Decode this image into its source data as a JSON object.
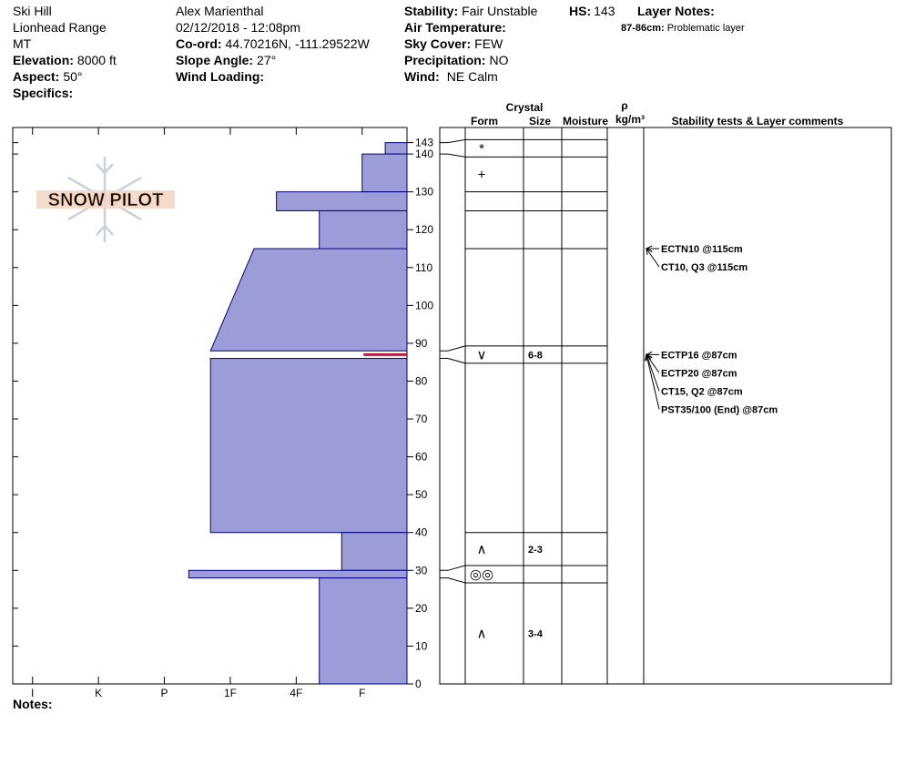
{
  "header": {
    "site": "Ski Hill",
    "range": "Lionhead Range",
    "state": "MT",
    "elevation": {
      "label": "Elevation:",
      "value": "8000 ft"
    },
    "aspect": {
      "label": "Aspect:",
      "value": "50°"
    },
    "specifics": {
      "label": "Specifics:"
    },
    "observer": "Alex Marienthal",
    "datetime": "02/12/2018 - 12:08pm",
    "coord": {
      "label": "Co-ord:",
      "value": "44.70216N, -111.29522W"
    },
    "slope": {
      "label": "Slope Angle:",
      "value": "27°"
    },
    "wind_loading": {
      "label": "Wind Loading:"
    },
    "stability": {
      "label": "Stability:",
      "value": "Fair Unstable"
    },
    "air_temp": {
      "label": "Air Temperature:"
    },
    "sky": {
      "label": "Sky Cover:",
      "value": "FEW"
    },
    "precip": {
      "label": "Precipitation:",
      "value": "NO"
    },
    "wind": {
      "label": "Wind:",
      "value": "NE Calm"
    },
    "hs": {
      "label": "HS:",
      "value": "143"
    },
    "layer_notes": {
      "label": "Layer Notes:",
      "notes": [
        {
          "range": "87-86cm:",
          "text": "Problematic layer"
        }
      ]
    }
  },
  "notes_label": "Notes:",
  "logo": "SNOW PILOT",
  "chart_data": {
    "type": "snow-profile",
    "ylim": [
      0,
      147
    ],
    "yticks": [
      0,
      10,
      20,
      30,
      40,
      50,
      60,
      70,
      80,
      90,
      100,
      110,
      120,
      130,
      140,
      143
    ],
    "xlim": [
      0.32,
      6.3
    ],
    "xticks": [
      {
        "value": 6,
        "label": "I"
      },
      {
        "value": 5,
        "label": "K"
      },
      {
        "value": 4,
        "label": "P"
      },
      {
        "value": 3,
        "label": "1F"
      },
      {
        "value": 2,
        "label": "4F"
      },
      {
        "value": 1,
        "label": "F"
      }
    ],
    "color": "#9c9cd8",
    "edge_color": "#000080",
    "headers": {
      "crystal": "Crystal",
      "form": "Form",
      "size": "Size",
      "moisture": "Moisture",
      "rho": "ρ",
      "density_unit": "kg/m³",
      "comments": "Stability tests & Layer comments"
    },
    "layers": [
      {
        "top": 143,
        "bottom": 140,
        "hardness": 0.65,
        "form": "*"
      },
      {
        "top": 140,
        "bottom": 130,
        "hardness": 1,
        "form": "+"
      },
      {
        "top": 130,
        "bottom": 125,
        "hardness": 2.3
      },
      {
        "top": 125,
        "bottom": 115,
        "hardness": 1.65
      },
      {
        "top": 115,
        "bottom": 88,
        "hardness_top": 2.64,
        "hardness": 3.3
      },
      {
        "top": 88,
        "bottom": 86,
        "hardness": 0.98,
        "color": "#b02040",
        "form": "∨",
        "size": "6-8"
      },
      {
        "top": 86,
        "bottom": 40,
        "hardness": 3.3
      },
      {
        "top": 40,
        "bottom": 30,
        "hardness": 1.31,
        "form": "∧",
        "size": "2-3"
      },
      {
        "top": 30,
        "bottom": 28,
        "hardness": 3.63,
        "form": "◎◎"
      },
      {
        "top": 28,
        "bottom": 0,
        "hardness": 1.65,
        "form": "∧",
        "size": "3-4"
      }
    ],
    "tests": [
      {
        "text": "ECTN10 @115cm",
        "depth": 115
      },
      {
        "text": "CT10, Q3 @115cm",
        "depth": 115
      },
      {
        "text": "ECTP16 @87cm",
        "depth": 87
      },
      {
        "text": "ECTP20 @87cm",
        "depth": 87
      },
      {
        "text": "CT15, Q2 @87cm",
        "depth": 87
      },
      {
        "text": "PST35/100 (End) @87cm",
        "depth": 87
      }
    ]
  }
}
